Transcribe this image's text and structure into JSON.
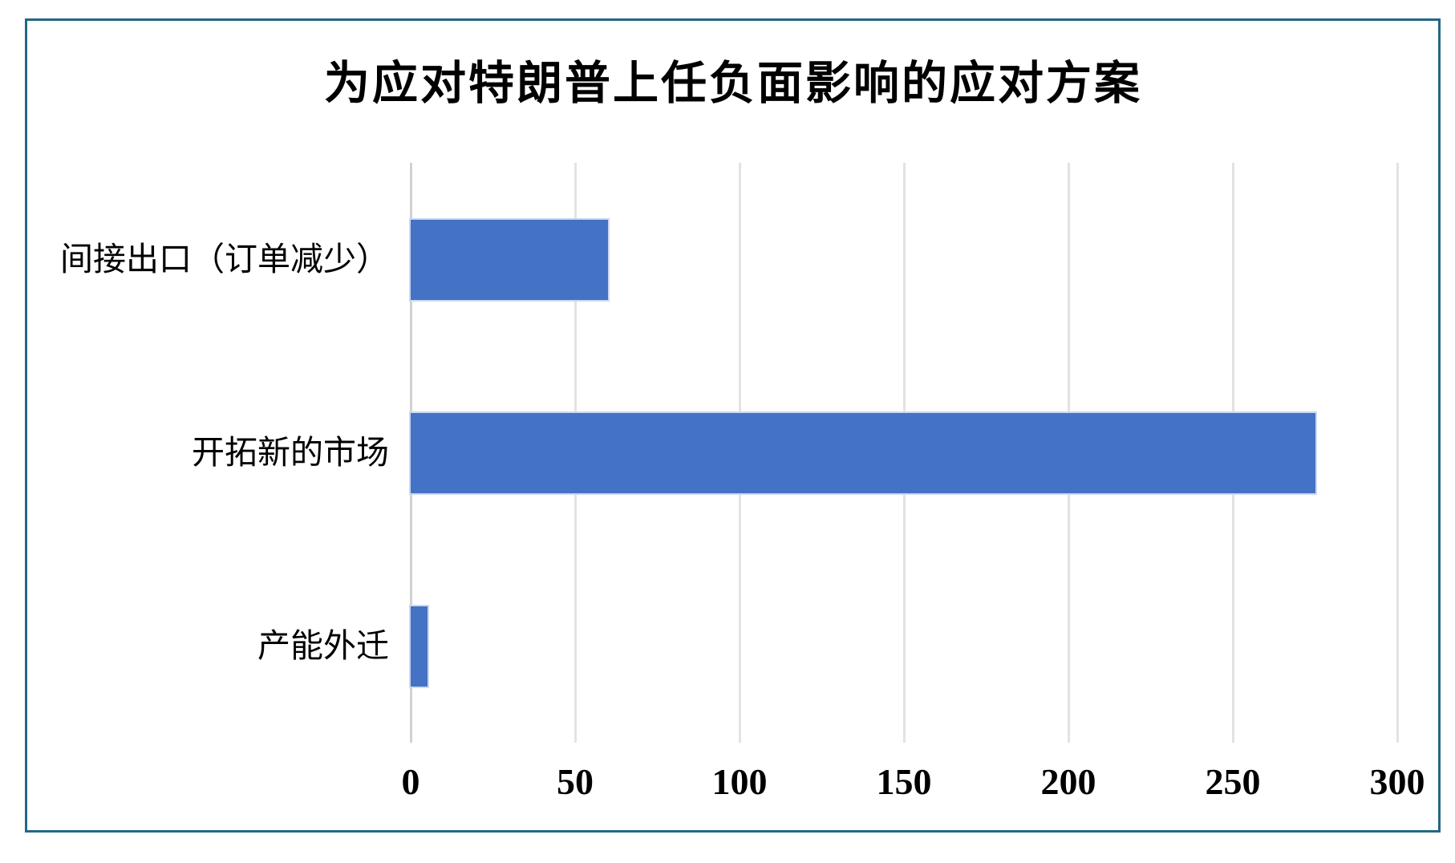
{
  "chart_data": {
    "type": "bar",
    "orientation": "horizontal",
    "title": "为应对特朗普上任负面影响的应对方案",
    "categories": [
      "间接出口（订单减少）",
      "开拓新的市场",
      "产能外迁"
    ],
    "values": [
      60,
      275,
      5
    ],
    "xlabel": "",
    "ylabel": "",
    "xlim": [
      0,
      300
    ],
    "xticks": [
      0,
      50,
      100,
      150,
      200,
      250,
      300
    ],
    "grid": "vertical gridlines on, category axis top-to-bottom",
    "legend": "none",
    "colors": {
      "bar_fill": "#4472C4",
      "gridline": "#E3E3E3",
      "axis_line": "#D2D2D2",
      "frame_border": "#236884",
      "text": "#000000",
      "background": "#FFFFFF"
    }
  }
}
